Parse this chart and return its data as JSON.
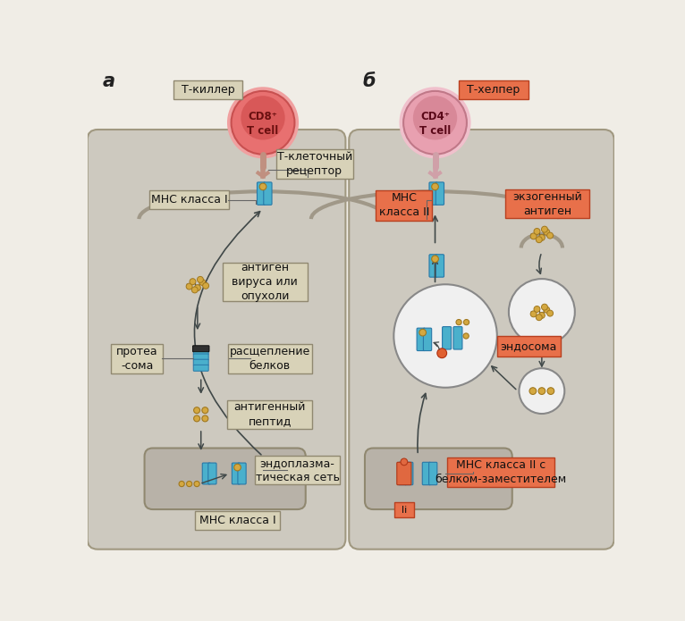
{
  "bg_color": "#f0ede6",
  "panel_bg_a": "#cdc9bf",
  "panel_bg_b": "#cdc9bf",
  "cell_color_a": "#e88878",
  "cell_color_b": "#e8aabb",
  "tub_color": "#4ab0cc",
  "tub_dark": "#2878a8",
  "peptide_color": "#d4a840",
  "peptide_edge": "#a07820",
  "er_color": "#b0aaa0",
  "label_bg_a": "#d8d2b8",
  "label_edge_a": "#908870",
  "label_bg_b": "#e8704a",
  "label_edge_b": "#b84020",
  "arrow_color": "#404848",
  "endosome_color": "#f0f0f0",
  "endosome_edge": "#888888",
  "receptor_color_a": "#c09878",
  "receptor_color_b": "#d8a0a8",
  "li_color": "#e06840",
  "panel_a": "а",
  "panel_b": "б",
  "lbl_tkiller": "Т-киллер",
  "lbl_thelper": "Т-хелпер",
  "lbl_cd8": "CD8⁺\nT cell",
  "lbl_cd4": "CD4⁺\nT cell",
  "lbl_treceptor": "Т-клеточный\nрецептор",
  "lbl_mhc1_top": "МНС класса I",
  "lbl_mhc1_bot": "МНС класса I",
  "lbl_mhc2": "МНС\nкласса II",
  "lbl_antigen": "антиген\nвируса или\nопухоли",
  "lbl_proteasome": "протеа\n-сома",
  "lbl_cleavage": "расщепление\nбелков",
  "lbl_antpep": "антигенный\nпептид",
  "lbl_er": "эндоплазма-\nтическая сеть",
  "lbl_exoantigen": "экзогенный\nантиген",
  "lbl_endosome": "эндосома",
  "lbl_mhc2li": "МНС класса II с\nбелком-заместителем",
  "lbl_li": "li"
}
